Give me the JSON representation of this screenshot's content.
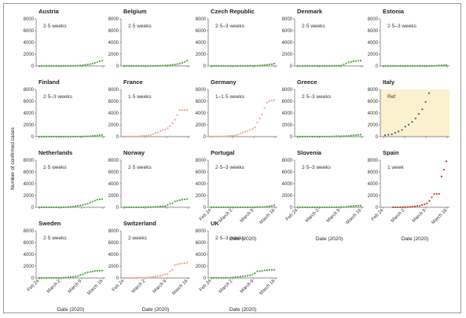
{
  "colors": {
    "green": "#4aa33a",
    "salmon": "#f0a08e",
    "dark": "#4a6070",
    "red": "#cf2e22",
    "ref_bg": "#fbf1cf",
    "axis": "#666666"
  },
  "chart_data": {
    "type": "scatter",
    "ylabel": "Number of confirmed cases",
    "xlabel": "Date (2020)",
    "yticks": [
      0,
      2000,
      4000,
      6000,
      8000
    ],
    "ylim": [
      0,
      8000
    ],
    "x_tick_labels": [
      "Feb 24",
      "March 2",
      "March 9",
      "March 16"
    ],
    "panels": [
      {
        "name": "Austria",
        "delay": "2·5 weeks",
        "color": "green",
        "values": [
          0,
          0,
          0,
          0,
          0,
          0,
          0,
          0,
          0,
          0,
          1,
          5,
          8,
          14,
          20,
          40,
          60,
          80,
          120,
          180,
          240,
          300,
          400,
          520,
          660,
          800,
          900
        ]
      },
      {
        "name": "Belgium",
        "delay": "2·5 weeks",
        "color": "green",
        "values": [
          0,
          0,
          0,
          0,
          0,
          0,
          0,
          0,
          0,
          1,
          2,
          3,
          6,
          10,
          20,
          40,
          60,
          80,
          110,
          160,
          200,
          240,
          310,
          400,
          560,
          690,
          900
        ]
      },
      {
        "name": "Czech Republic",
        "delay": "2·5–3 weeks",
        "color": "green",
        "values": [
          0,
          0,
          0,
          0,
          0,
          0,
          0,
          0,
          0,
          0,
          0,
          0,
          1,
          3,
          5,
          8,
          12,
          20,
          35,
          60,
          90,
          120,
          160,
          200,
          260,
          300,
          380
        ]
      },
      {
        "name": "Denmark",
        "delay": "2·5 weeks",
        "color": "green",
        "values": [
          0,
          0,
          0,
          0,
          0,
          0,
          0,
          0,
          0,
          0,
          0,
          0,
          1,
          4,
          8,
          15,
          25,
          40,
          90,
          260,
          440,
          620,
          700,
          800,
          850,
          880,
          900
        ]
      },
      {
        "name": "Estonia",
        "delay": "2·5–3 weeks",
        "color": "green",
        "values": [
          0,
          0,
          0,
          0,
          0,
          0,
          0,
          0,
          0,
          0,
          0,
          0,
          0,
          0,
          1,
          2,
          3,
          5,
          10,
          13,
          17,
          27,
          60,
          80,
          110,
          130,
          170
        ]
      },
      {
        "name": "Finland",
        "delay": "2·5–3 weeks",
        "color": "green",
        "values": [
          0,
          0,
          0,
          0,
          0,
          0,
          0,
          0,
          0,
          0,
          0,
          0,
          1,
          2,
          3,
          6,
          12,
          20,
          30,
          40,
          60,
          80,
          120,
          160,
          200,
          240,
          280
        ]
      },
      {
        "name": "France",
        "delay": "1·5 weeks",
        "color": "salmon",
        "values": [
          12,
          12,
          12,
          14,
          18,
          38,
          57,
          100,
          130,
          191,
          212,
          285,
          423,
          613,
          706,
          949,
          1126,
          1209,
          1412,
          1784,
          2281,
          2876,
          3661,
          4499,
          4500,
          4520,
          4530
        ]
      },
      {
        "name": "Germany",
        "delay": "1–1·5 weeks",
        "color": "salmon",
        "values": [
          16,
          16,
          18,
          21,
          26,
          53,
          66,
          117,
          150,
          188,
          240,
          349,
          534,
          684,
          847,
          902,
          1139,
          1296,
          1567,
          2369,
          3062,
          3795,
          4838,
          5800,
          6000,
          6100,
          6200
        ]
      },
      {
        "name": "Greece",
        "delay": "2·5–3 weeks",
        "color": "green",
        "values": [
          0,
          0,
          0,
          0,
          0,
          0,
          0,
          0,
          0,
          1,
          3,
          4,
          7,
          9,
          31,
          45,
          66,
          73,
          84,
          89,
          99,
          117,
          190,
          228,
          260,
          300,
          330
        ]
      },
      {
        "name": "Italy",
        "delay": "Ref",
        "color": "dark",
        "ref": true,
        "values": [
          229,
          322,
          400,
          650,
          888,
          1128,
          1694,
          2036,
          2502,
          3089,
          3858,
          4636,
          5883,
          7375
        ]
      },
      {
        "name": "Netherlands",
        "delay": "2·5 weeks",
        "color": "green",
        "values": [
          0,
          0,
          0,
          0,
          0,
          0,
          0,
          1,
          2,
          7,
          18,
          24,
          38,
          82,
          128,
          188,
          265,
          321,
          382,
          503,
          614,
          804,
          959,
          1135,
          1300,
          1350,
          1400
        ]
      },
      {
        "name": "Norway",
        "delay": "2·5 weeks",
        "color": "green",
        "values": [
          0,
          0,
          0,
          0,
          0,
          0,
          1,
          6,
          15,
          19,
          25,
          32,
          56,
          87,
          108,
          147,
          176,
          205,
          400,
          598,
          702,
          996,
          1090,
          1221,
          1300,
          1350,
          1400
        ]
      },
      {
        "name": "Portugal",
        "delay": "2·5–3 weeks",
        "color": "green",
        "values": [
          0,
          0,
          0,
          0,
          0,
          0,
          0,
          0,
          0,
          0,
          0,
          0,
          0,
          2,
          4,
          5,
          8,
          13,
          20,
          30,
          41,
          59,
          78,
          112,
          169,
          245,
          330
        ]
      },
      {
        "name": "Slovenia",
        "delay": "2·5–3 weeks",
        "color": "green",
        "values": [
          0,
          0,
          0,
          0,
          0,
          0,
          0,
          0,
          0,
          0,
          0,
          0,
          1,
          6,
          8,
          12,
          16,
          23,
          31,
          57,
          89,
          141,
          181,
          219,
          250,
          270,
          290
        ]
      },
      {
        "name": "Spain",
        "delay": "1 week",
        "color": "red",
        "values": [
          2,
          2,
          6,
          13,
          15,
          32,
          45,
          84,
          120,
          165,
          222,
          259,
          400,
          500,
          673,
          1073,
          1695,
          2277,
          2277,
          2277,
          5232,
          6391,
          7798
        ]
      },
      {
        "name": "Sweden",
        "delay": "2·5 weeks",
        "color": "green",
        "values": [
          1,
          1,
          1,
          2,
          7,
          7,
          12,
          14,
          15,
          21,
          35,
          94,
          101,
          161,
          203,
          248,
          355,
          500,
          599,
          814,
          961,
          1022,
          1103,
          1190,
          1200,
          1220,
          1250
        ]
      },
      {
        "name": "Switzerland",
        "delay": "2 weeks",
        "color": "salmon",
        "values": [
          0,
          1,
          1,
          1,
          8,
          8,
          18,
          27,
          42,
          56,
          90,
          114,
          214,
          268,
          337,
          374,
          491,
          652,
          652,
          1139,
          1359,
          2200,
          2300,
          2400,
          2450,
          2500,
          2600
        ]
      },
      {
        "name": "UK",
        "delay": "2·5–3 weeks",
        "color": "green",
        "values": [
          13,
          13,
          13,
          13,
          19,
          23,
          35,
          40,
          51,
          85,
          115,
          163,
          206,
          273,
          321,
          382,
          456,
          590,
          798,
          1140,
          1140,
          1200,
          1300,
          1350,
          1370,
          1380,
          1390
        ]
      }
    ]
  }
}
